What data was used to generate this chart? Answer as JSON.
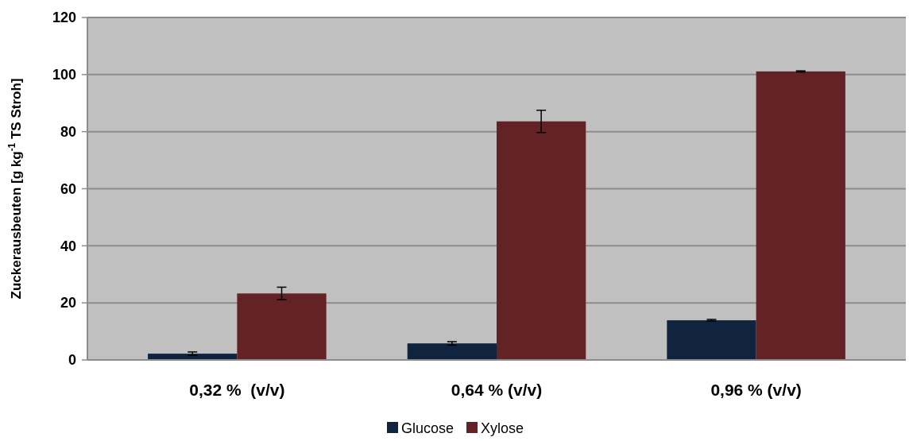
{
  "chart_data": {
    "type": "bar",
    "ylabel": "Zuckerausbeuten [g kg$^{-1}$ TS Stroh]",
    "categories": [
      "0,32 %  (v/v)",
      "0,64 % (v/v)",
      "0,96 % (v/v)"
    ],
    "series": [
      {
        "name": "Glucose",
        "color": "#10243f",
        "values": [
          2.2,
          5.8,
          13.9
        ],
        "errors": [
          0.6,
          0.6,
          0.3
        ]
      },
      {
        "name": "Xylose",
        "color": "#632326",
        "values": [
          23.3,
          83.6,
          101.1
        ],
        "errors": [
          2.2,
          3.9,
          0.2
        ]
      }
    ],
    "ylim": [
      0,
      120
    ],
    "yticks": [
      0,
      20,
      40,
      60,
      80,
      100,
      120
    ],
    "grid": "y",
    "legend": "bottom"
  }
}
